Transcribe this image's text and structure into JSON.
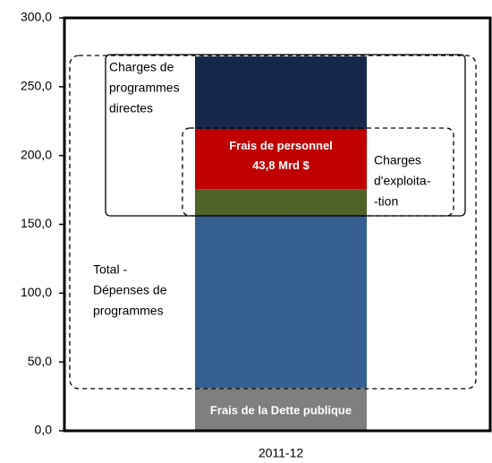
{
  "chart_data": {
    "type": "bar",
    "stacked": true,
    "categories": [
      "2011-12"
    ],
    "series": [
      {
        "name": "Frais de la Dette publique",
        "color": "#7f7f7f",
        "values": [
          31
        ]
      },
      {
        "color": "#376092",
        "values": [
          125
        ]
      },
      {
        "color": "#4f6228",
        "values": [
          19.5
        ]
      },
      {
        "name": "Frais de personnel",
        "color": "#c00000",
        "values": [
          43.8
        ],
        "value_labels": [
          "43,8 Mrd $"
        ]
      },
      {
        "color": "#17294a",
        "values": [
          52.7
        ]
      }
    ],
    "ylim": [
      0,
      300
    ],
    "yticks": [
      {
        "value": 0,
        "label": "0,0"
      },
      {
        "value": 50,
        "label": "50,0"
      },
      {
        "value": 100,
        "label": "100,0"
      },
      {
        "value": 150,
        "label": "150,0"
      },
      {
        "value": 200,
        "label": "200,0"
      },
      {
        "value": 250,
        "label": "250,0"
      },
      {
        "value": 300,
        "label": "300,0"
      }
    ],
    "annotations": [
      {
        "lines": [
          "Charges de",
          "programmes",
          "directes"
        ]
      },
      {
        "lines": [
          "Charges",
          "d'exploita-",
          "-tion"
        ]
      },
      {
        "lines": [
          "Total  -",
          "Dépenses de",
          "programmes"
        ]
      }
    ]
  }
}
